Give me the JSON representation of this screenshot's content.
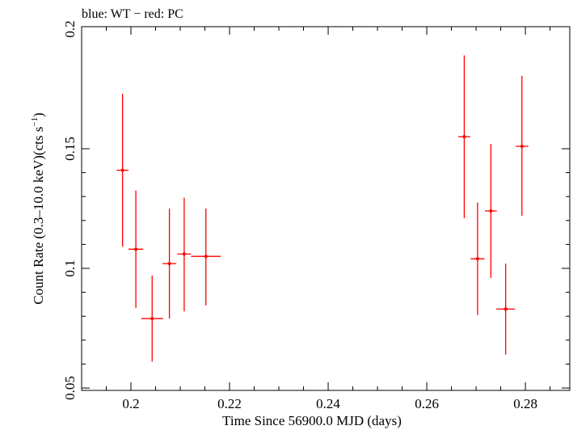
{
  "chart_data": {
    "type": "scatter",
    "title": "blue: WT − red: PC",
    "xlabel": "Time Since 56900.0 MJD (days)",
    "ylabel_prefix": "Count Rate (0.3–10.0 keV)(cts s",
    "ylabel_sup": "−1",
    "ylabel_suffix": ")",
    "xlim": [
      0.19,
      0.289
    ],
    "ylim": [
      0.049,
      0.201
    ],
    "x_ticks": [
      0.2,
      0.22,
      0.24,
      0.26,
      0.28
    ],
    "x_tick_labels": [
      "0.2",
      "0.22",
      "0.24",
      "0.26",
      "0.28"
    ],
    "y_ticks": [
      0.05,
      0.1,
      0.15,
      0.2
    ],
    "y_tick_labels": [
      "0.05",
      "0.1",
      "0.15",
      "0.2"
    ],
    "grid": false,
    "series": [
      {
        "color": "#ff0000",
        "points": [
          {
            "x": 0.1983,
            "xerr": 0.0012,
            "y": 0.141,
            "ylo": 0.109,
            "yhi": 0.173
          },
          {
            "x": 0.201,
            "xerr": 0.0015,
            "y": 0.108,
            "ylo": 0.0835,
            "yhi": 0.1325
          },
          {
            "x": 0.2043,
            "xerr": 0.0022,
            "y": 0.079,
            "ylo": 0.061,
            "yhi": 0.097
          },
          {
            "x": 0.2078,
            "xerr": 0.0014,
            "y": 0.102,
            "ylo": 0.079,
            "yhi": 0.125
          },
          {
            "x": 0.2108,
            "xerr": 0.0014,
            "y": 0.106,
            "ylo": 0.082,
            "yhi": 0.1295
          },
          {
            "x": 0.2152,
            "xerr": 0.003,
            "y": 0.105,
            "ylo": 0.0845,
            "yhi": 0.125
          },
          {
            "x": 0.2676,
            "xerr": 0.0012,
            "y": 0.155,
            "ylo": 0.121,
            "yhi": 0.189
          },
          {
            "x": 0.2703,
            "xerr": 0.0014,
            "y": 0.104,
            "ylo": 0.0805,
            "yhi": 0.1275
          },
          {
            "x": 0.273,
            "xerr": 0.0012,
            "y": 0.124,
            "ylo": 0.096,
            "yhi": 0.152
          },
          {
            "x": 0.276,
            "xerr": 0.0019,
            "y": 0.083,
            "ylo": 0.064,
            "yhi": 0.102
          },
          {
            "x": 0.2793,
            "xerr": 0.0013,
            "y": 0.151,
            "ylo": 0.122,
            "yhi": 0.1805
          }
        ]
      }
    ]
  }
}
